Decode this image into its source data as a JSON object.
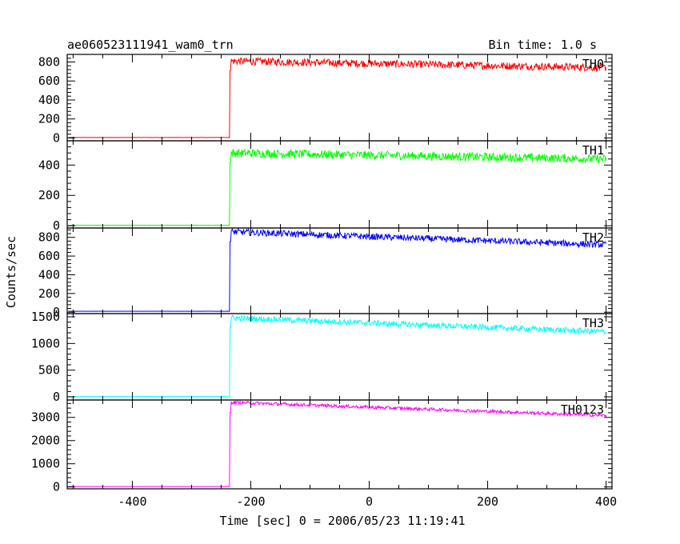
{
  "header": {
    "title": "ae060523111941_wam0_trn",
    "bin_time": "Bin time: 1.0 s"
  },
  "chart_data": {
    "type": "line",
    "title": "ae060523111941_wam0_trn",
    "xlabel": "Time [sec] 0 = 2006/05/23 11:19:41",
    "ylabel": "Counts/sec",
    "xlim": [
      -510,
      410
    ],
    "x_ticks": [
      -400,
      -200,
      0,
      200,
      400
    ],
    "onset_x": -235,
    "panels": [
      {
        "name": "TH0",
        "color": "#ff0000",
        "ylim": [
          -30,
          880
        ],
        "y_ticks": [
          0,
          200,
          400,
          600,
          800
        ],
        "baseline": 5,
        "level_start": 810,
        "level_end": 740,
        "noise": 40
      },
      {
        "name": "TH1",
        "color": "#00ff00",
        "ylim": [
          -15,
          560
        ],
        "y_ticks": [
          0,
          200,
          400
        ],
        "baseline": 3,
        "level_start": 480,
        "level_end": 440,
        "noise": 28
      },
      {
        "name": "TH2",
        "color": "#0000ff",
        "ylim": [
          -15,
          900
        ],
        "y_ticks": [
          0,
          200,
          400,
          600,
          800
        ],
        "baseline": 10,
        "level_start": 860,
        "level_end": 720,
        "noise": 35
      },
      {
        "name": "TH3",
        "color": "#00ffff",
        "ylim": [
          -60,
          1560
        ],
        "y_ticks": [
          0,
          500,
          1000,
          1500
        ],
        "baseline": 5,
        "level_start": 1480,
        "level_end": 1220,
        "noise": 55
      },
      {
        "name": "TH0123",
        "color": "#ff00ff",
        "ylim": [
          -80,
          3750
        ],
        "y_ticks": [
          0,
          1000,
          2000,
          3000
        ],
        "baseline": 20,
        "level_start": 3650,
        "level_end": 3080,
        "noise": 70
      }
    ]
  }
}
